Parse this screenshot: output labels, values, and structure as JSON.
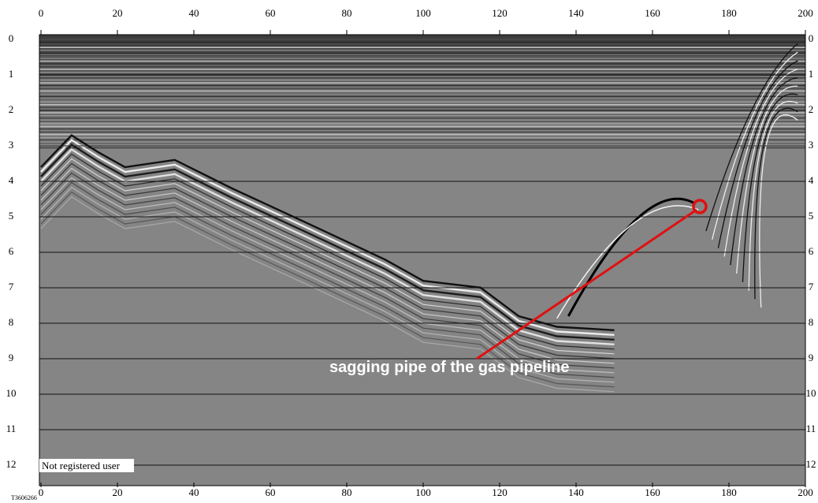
{
  "radargram": {
    "x_ticks": [
      0,
      20,
      40,
      60,
      80,
      100,
      120,
      140,
      160,
      180,
      200
    ],
    "y_ticks": [
      0,
      1,
      2,
      3,
      4,
      5,
      6,
      7,
      8,
      9,
      10,
      11,
      12
    ],
    "annotation": "sagging pipe of the gas pipeline",
    "watermark": "Not registered user",
    "file_id": "T3606266"
  }
}
